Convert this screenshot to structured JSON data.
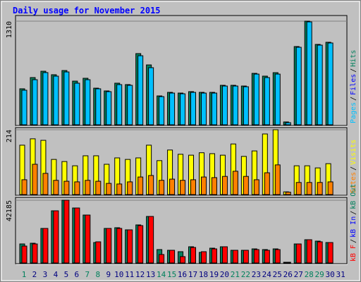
{
  "chart_data": [
    {
      "type": "bar",
      "title": "Daily usage for November 2015",
      "separator": "/",
      "ylim": [
        0,
        1310
      ],
      "yticks": [
        1310
      ],
      "series": [
        {
          "name": "Pages",
          "color": "#00c0ff",
          "values": [
            437,
            570,
            660,
            615,
            668,
            526,
            570,
            455,
            419,
            508,
            499,
            873,
            722,
            356,
            401,
            392,
            410,
            401,
            401,
            490,
            490,
            481,
            641,
            597,
            641,
            27,
            980,
            1301,
            1007,
            1034,
            null
          ]
        },
        {
          "name": "Files",
          "color": "#0000ff",
          "values": [
            null,
            null,
            null,
            null,
            null,
            null,
            null,
            null,
            null,
            null,
            null,
            null,
            null,
            null,
            null,
            null,
            null,
            null,
            null,
            null,
            null,
            null,
            null,
            null,
            null,
            null,
            null,
            null,
            null,
            null,
            null
          ]
        },
        {
          "name": "Hits",
          "color": "#00805c",
          "values": [
            455,
            597,
            677,
            633,
            686,
            552,
            588,
            463,
            428,
            526,
            508,
            900,
            757,
            365,
            410,
            401,
            419,
            410,
            410,
            499,
            499,
            490,
            650,
            615,
            659,
            36,
            989,
            1310,
            1016,
            1043,
            null
          ]
        }
      ]
    },
    {
      "type": "bar",
      "separator": "/",
      "ylim": [
        0,
        214
      ],
      "yticks": [
        214
      ],
      "series": [
        {
          "name": "Sites",
          "color": "#ff8000",
          "values": [
            49,
            100,
            70,
            47,
            44,
            42,
            47,
            44,
            37,
            35,
            42,
            58,
            63,
            47,
            51,
            47,
            49,
            58,
            56,
            60,
            77,
            60,
            49,
            72,
            98,
            8,
            40,
            40,
            40,
            42,
            null
          ]
        },
        {
          "name": "Visits",
          "color": "#ffff00",
          "values": [
            163,
            184,
            179,
            116,
            109,
            95,
            128,
            128,
            100,
            121,
            116,
            121,
            163,
            112,
            147,
            133,
            130,
            138,
            135,
            130,
            167,
            126,
            144,
            200,
            214,
            9,
            95,
            95,
            88,
            102,
            null
          ]
        }
      ]
    },
    {
      "type": "bar",
      "separator": "/",
      "ylim": [
        0,
        42185
      ],
      "yticks": [
        42185
      ],
      "categories": [
        "1",
        "2",
        "3",
        "4",
        "5",
        "6",
        "7",
        "8",
        "9",
        "10",
        "11",
        "12",
        "13",
        "14",
        "15",
        "16",
        "17",
        "18",
        "19",
        "20",
        "21",
        "22",
        "23",
        "24",
        "25",
        "26",
        "27",
        "28",
        "29",
        "30",
        "31"
      ],
      "category_colors": [
        "#00805c",
        "#000080",
        "#000080",
        "#000080",
        "#000080",
        "#000080",
        "#00805c",
        "#00805c",
        "#000080",
        "#000080",
        "#000080",
        "#000080",
        "#000080",
        "#00805c",
        "#00805c",
        "#000080",
        "#000080",
        "#000080",
        "#000080",
        "#000080",
        "#00805c",
        "#00805c",
        "#000080",
        "#000080",
        "#000080",
        "#000080",
        "#000080",
        "#00805c",
        "#00805c",
        "#000080",
        "#000080"
      ],
      "series": [
        {
          "name": "kB F",
          "color": "#ff0000",
          "values": [
            11376,
            12798,
            23226,
            35076,
            42185,
            36972,
            32232,
            14220,
            23226,
            23226,
            22278,
            25122,
            31284,
            5688,
            8532,
            4266,
            10428,
            7584,
            9480,
            10902,
            8532,
            8532,
            9006,
            8532,
            9006,
            474,
            12798,
            15642,
            14220,
            13746,
            null
          ]
        },
        {
          "name": "kB In",
          "color": "#0000ff",
          "values": [
            null,
            null,
            null,
            null,
            null,
            null,
            null,
            null,
            null,
            null,
            null,
            null,
            null,
            null,
            null,
            null,
            null,
            null,
            null,
            null,
            null,
            null,
            null,
            null,
            null,
            null,
            null,
            null,
            null,
            null,
            null
          ]
        },
        {
          "name": "kB Out",
          "color": "#00805c",
          "values": [
            12798,
            13272,
            23226,
            35076,
            42185,
            36972,
            32232,
            13746,
            23226,
            23700,
            22278,
            25596,
            31284,
            9006,
            8532,
            7584,
            10902,
            7110,
            9954,
            10902,
            8532,
            8532,
            9480,
            9006,
            9480,
            474,
            12798,
            15642,
            14694,
            13746,
            null
          ]
        }
      ]
    }
  ]
}
